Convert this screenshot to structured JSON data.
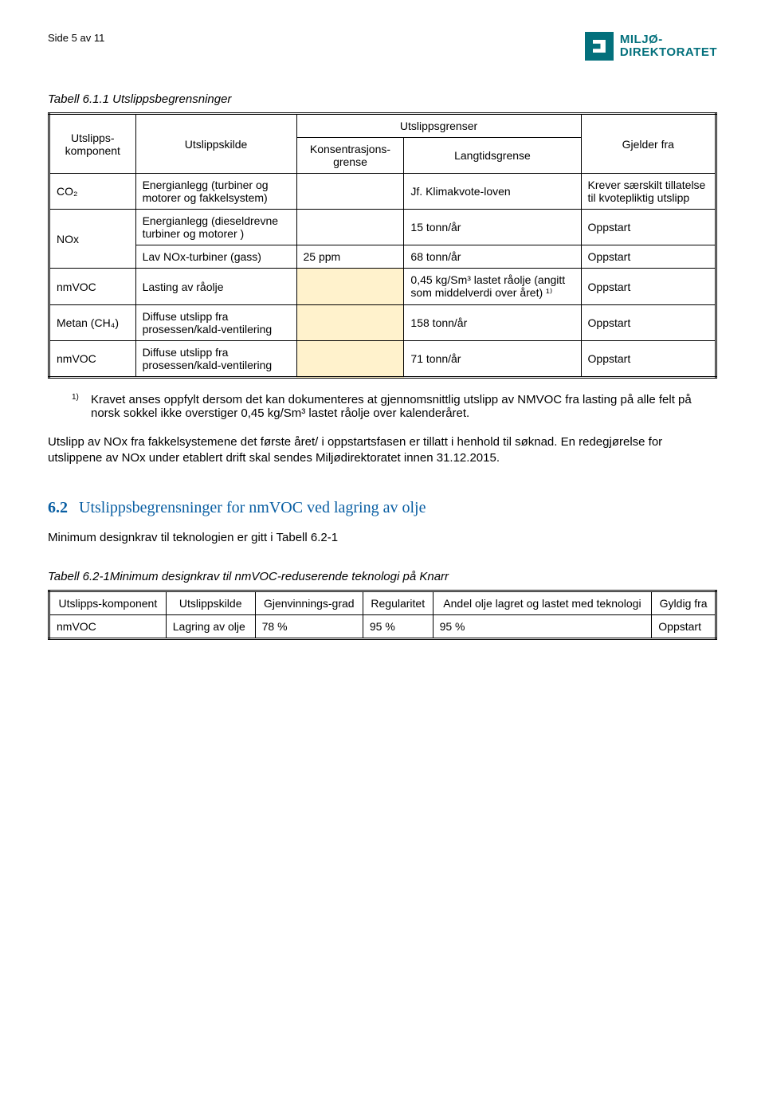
{
  "header": {
    "page_label": "Side 5 av 11",
    "brand_line1": "MILJØ-",
    "brand_line2": "DIREKTORATET"
  },
  "table1": {
    "caption": "Tabell 6.1.1 Utslippsbegrensninger",
    "head": {
      "component": "Utslipps-komponent",
      "source": "Utslippskilde",
      "limits": "Utslippsgrenser",
      "conc": "Konsentrasjons-grense",
      "long": "Langtidsgrense",
      "valid": "Gjelder fra"
    },
    "rows": [
      {
        "comp": "CO₂",
        "source": "Energianlegg (turbiner og motorer og fakkelsystem)",
        "conc": "",
        "long": "Jf. Klimakvote-loven",
        "valid": "Krever særskilt tillatelse til kvotepliktig utslipp"
      },
      {
        "comp": "NOx",
        "source": "Energianlegg (dieseldrevne turbiner og motorer )",
        "conc": "",
        "long": "15 tonn/år",
        "valid": "Oppstart",
        "rowspan": 2
      },
      {
        "source": "Lav NOx-turbiner (gass)",
        "conc": "25 ppm",
        "long": "68 tonn/år",
        "valid": "Oppstart"
      },
      {
        "comp": "nmVOC",
        "source": "Lasting av råolje",
        "conc": "",
        "long": "0,45 kg/Sm³ lastet råolje (angitt som middelverdi over året) ¹⁾",
        "valid": "Oppstart",
        "shade": true
      },
      {
        "comp": "Metan (CH₄)",
        "source": "Diffuse utslipp fra prosessen/kald-ventilering",
        "conc": "",
        "long": "158 tonn/år",
        "valid": "Oppstart",
        "shade": true
      },
      {
        "comp": "nmVOC",
        "source": "Diffuse utslipp fra prosessen/kald-ventilering",
        "conc": "",
        "long": "71 tonn/år",
        "valid": "Oppstart",
        "shade": true
      }
    ]
  },
  "footnote": {
    "marker": "1)",
    "text": "Kravet anses oppfylt dersom det kan dokumenteres at gjennomsnittlig utslipp av NMVOC fra lasting på alle felt på norsk sokkel ikke overstiger 0,45 kg/Sm³ lastet råolje over kalenderåret."
  },
  "para2": "Utslipp av NOx fra fakkelsystemene det første året/ i oppstartsfasen er tillatt i henhold til søknad. En redegjørelse for utslippene av NOx under etablert drift skal sendes Miljødirektoratet innen 31.12.2015.",
  "section62": {
    "num": "6.2",
    "title": "Utslippsbegrensninger for nmVOC ved lagring av olje",
    "intro": "Minimum designkrav til teknologien er gitt i Tabell 6.2-1",
    "caption": "Tabell 6.2-1Minimum designkrav til nmVOC-reduserende teknologi på Knarr"
  },
  "table2": {
    "head": {
      "component": "Utslipps-komponent",
      "source": "Utslippskilde",
      "grade": "Gjenvinnings-grad",
      "reg": "Regularitet",
      "share": "Andel olje lagret og lastet med teknologi",
      "valid": "Gyldig fra"
    },
    "row": {
      "comp": "nmVOC",
      "source": "Lagring av olje",
      "grade": "78 %",
      "reg": "95 %",
      "share": "95 %",
      "valid": "Oppstart"
    }
  }
}
